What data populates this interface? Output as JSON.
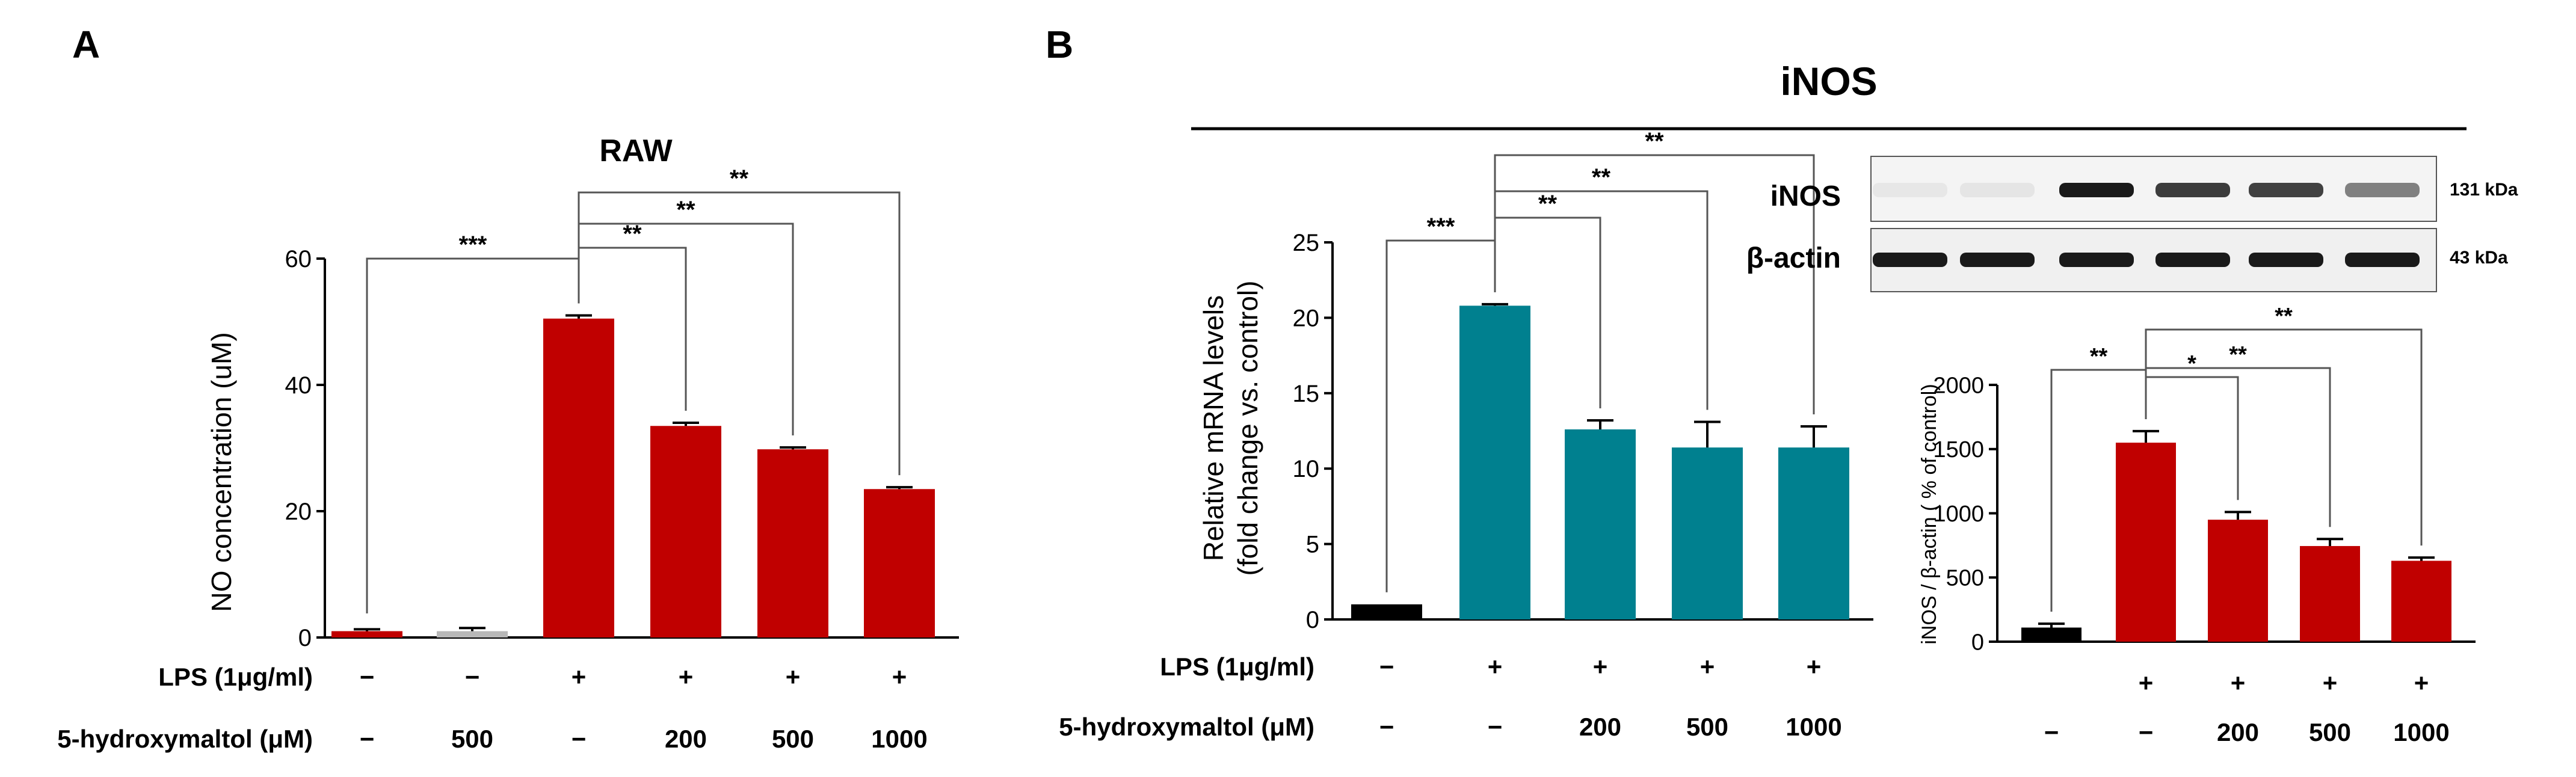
{
  "panel_labels": {
    "a": "A",
    "b": "B"
  },
  "panel_b_header": "iNOS",
  "row_labels": {
    "lps": "LPS (1μg/ml)",
    "hm": "5-hydroxymaltol (μM)",
    "plus": "+",
    "minus": "−"
  },
  "colors": {
    "red": "#c00000",
    "teal": "#00808f",
    "black": "#000000",
    "grey": "#b8b8b8"
  },
  "chart_data": [
    {
      "id": "no",
      "type": "bar",
      "title": "RAW",
      "xlabel": "",
      "ylabel": "NO concentration (uM)",
      "ylim": [
        0,
        60
      ],
      "yticks": [
        0,
        20,
        40,
        60
      ],
      "categories": [
        "ctrl",
        "HM500",
        "LPS",
        "LPS+HM200",
        "LPS+HM500",
        "LPS+HM1000"
      ],
      "values": [
        1,
        1,
        50.5,
        33.5,
        29.8,
        23.5
      ],
      "errors": [
        0.3,
        0.5,
        0.5,
        0.5,
        0.3,
        0.3
      ],
      "colors": [
        "#c00000",
        "#b8b8b8",
        "#c00000",
        "#c00000",
        "#c00000",
        "#c00000"
      ],
      "lps": [
        "−",
        "−",
        "+",
        "+",
        "+",
        "+"
      ],
      "hm": [
        "−",
        "500",
        "−",
        "200",
        "500",
        "1000"
      ],
      "significance": [
        {
          "from": 0,
          "to": 2,
          "label": "***"
        },
        {
          "from": 2,
          "to": 3,
          "label": "**"
        },
        {
          "from": 2,
          "to": 4,
          "label": "**"
        },
        {
          "from": 2,
          "to": 5,
          "label": "**"
        }
      ]
    },
    {
      "id": "mrna",
      "type": "bar",
      "title": "",
      "xlabel": "",
      "ylabel": [
        "Relative mRNA levels",
        "(fold change vs. control)"
      ],
      "ylim": [
        0,
        25
      ],
      "yticks": [
        0,
        5,
        10,
        15,
        20,
        25
      ],
      "categories": [
        "ctrl",
        "LPS",
        "LPS+HM200",
        "LPS+HM500",
        "LPS+HM1000"
      ],
      "values": [
        1,
        20.8,
        12.6,
        11.4,
        11.4
      ],
      "errors": [
        0,
        0.1,
        0.6,
        1.7,
        1.4
      ],
      "colors": [
        "#000000",
        "#00808f",
        "#00808f",
        "#00808f",
        "#00808f"
      ],
      "lps": [
        "−",
        "+",
        "+",
        "+",
        "+"
      ],
      "hm": [
        "−",
        "−",
        "200",
        "500",
        "1000"
      ],
      "significance": [
        {
          "from": 0,
          "to": 1,
          "label": "***"
        },
        {
          "from": 1,
          "to": 2,
          "label": "**"
        },
        {
          "from": 1,
          "to": 3,
          "label": "**"
        },
        {
          "from": 1,
          "to": 4,
          "label": "**"
        }
      ]
    },
    {
      "id": "wb",
      "type": "bar",
      "title": "",
      "xlabel": "",
      "ylabel": "iNOS / β-actin ( % of control)",
      "ylim": [
        0,
        2000
      ],
      "yticks": [
        0,
        500,
        1000,
        1500,
        2000
      ],
      "categories": [
        "ctrl",
        "LPS",
        "LPS+HM200",
        "LPS+HM500",
        "LPS+HM1000"
      ],
      "values": [
        110,
        1550,
        950,
        745,
        630
      ],
      "errors": [
        30,
        90,
        60,
        55,
        25
      ],
      "colors": [
        "#000000",
        "#c00000",
        "#c00000",
        "#c00000",
        "#c00000"
      ],
      "lps": [
        "+",
        "+",
        "+",
        "+"
      ],
      "lps_start": 1,
      "hm": [
        "−",
        "−",
        "200",
        "500",
        "1000"
      ],
      "significance": [
        {
          "from": 0,
          "to": 1,
          "label": "**"
        },
        {
          "from": 1,
          "to": 2,
          "label": "*"
        },
        {
          "from": 1,
          "to": 3,
          "label": "**"
        },
        {
          "from": 1,
          "to": 4,
          "label": "**"
        }
      ]
    }
  ],
  "western_blot": {
    "rows": [
      {
        "label": "iNOS",
        "kda": "131 kDa",
        "intensity": [
          0.04,
          0.05,
          0.95,
          0.8,
          0.78,
          0.5
        ]
      },
      {
        "label": "β-actin",
        "kda": "43 kDa",
        "intensity": [
          0.95,
          0.95,
          0.95,
          0.95,
          0.95,
          0.95
        ]
      }
    ]
  }
}
